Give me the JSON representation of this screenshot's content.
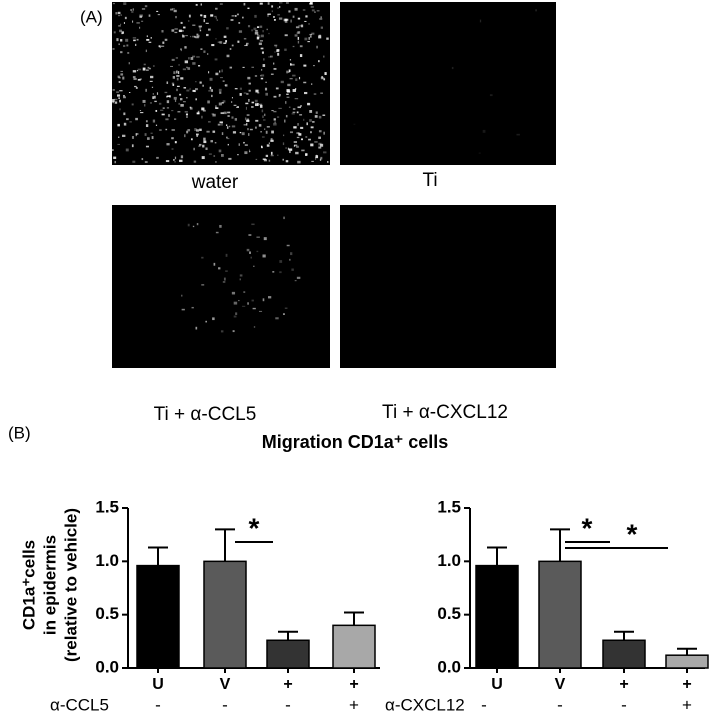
{
  "panel_a": {
    "label": "(A)",
    "captions": [
      "water",
      "Ti",
      "Ti + α-CCL5",
      "Ti + α-CXCL12"
    ]
  },
  "panel_b": {
    "label": "(B)",
    "title": "Migration CD1a⁺ cells",
    "ylabel": [
      "CD1a⁺cells",
      "in epidermis",
      "(relative to vehicle)"
    ]
  },
  "chart_data": [
    {
      "type": "bar",
      "categories": [
        "U",
        "V",
        "+",
        "+"
      ],
      "values": [
        0.96,
        1.0,
        0.26,
        0.4
      ],
      "errors": [
        0.17,
        0.3,
        0.08,
        0.12
      ],
      "colors": [
        "#000000",
        "#5a5a5a",
        "#333333",
        "#a8a8a8"
      ],
      "treatment": {
        "label": "α-CCL5",
        "values": [
          "-",
          "-",
          "-",
          "+"
        ]
      },
      "ylim": [
        0,
        1.5
      ],
      "yticks": [
        {
          "value": 0,
          "label": "0.0"
        },
        0.5,
        {
          "value": 1,
          "label": "1.0"
        },
        1.5
      ],
      "significance": [
        {
          "label": "*"
        }
      ]
    },
    {
      "type": "bar",
      "categories": [
        "U",
        "V",
        "+",
        "+"
      ],
      "values": [
        0.96,
        1.0,
        0.26,
        0.12
      ],
      "errors": [
        0.17,
        0.3,
        0.08,
        0.06
      ],
      "colors": [
        "#000000",
        "#5a5a5a",
        "#333333",
        "#a8a8a8"
      ],
      "treatment": {
        "label": "α-CXCL12",
        "values": [
          "-",
          "-",
          "-",
          "+"
        ]
      },
      "ylim": [
        0,
        1.5
      ],
      "yticks": [
        {
          "value": 0,
          "label": "0.0"
        },
        0.5,
        {
          "value": 1,
          "label": "1.0"
        },
        1.5
      ],
      "significance": [
        {
          "label": "*"
        },
        {
          "label": "*"
        }
      ]
    }
  ]
}
